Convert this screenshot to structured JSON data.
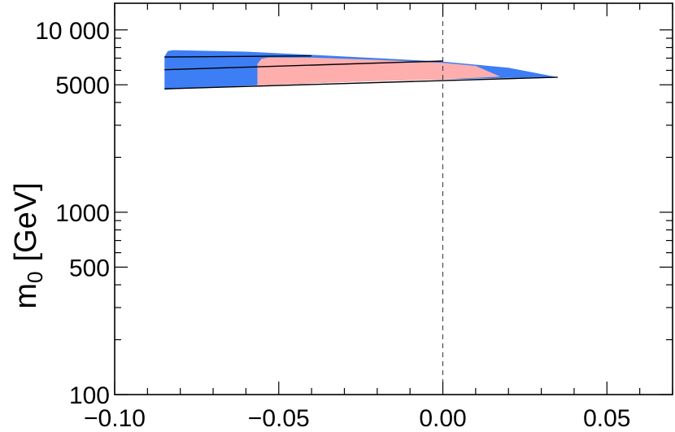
{
  "chart_data": {
    "type": "area",
    "title": "",
    "xlabel": "",
    "ylabel": "m",
    "ylabel_subscript": "0",
    "ylabel_unit": "[GeV]",
    "xlim": [
      -0.1,
      0.07
    ],
    "ylim": [
      100,
      14000
    ],
    "yscale": "log",
    "grid": false,
    "x_ticks": [
      {
        "value": -0.1,
        "label": "−0.10"
      },
      {
        "value": -0.05,
        "label": "−0.05"
      },
      {
        "value": 0.0,
        "label": "0.00"
      },
      {
        "value": 0.05,
        "label": "0.05"
      }
    ],
    "y_ticks": [
      {
        "value": 100,
        "label": "100"
      },
      {
        "value": 500,
        "label": "500"
      },
      {
        "value": 1000,
        "label": "1000"
      },
      {
        "value": 5000,
        "label": "5000"
      },
      {
        "value": 10000,
        "label": "10 000"
      }
    ],
    "reference_line": {
      "x": 0.0,
      "style": "dashed"
    },
    "regions": [
      {
        "color": "#3d7ef5",
        "points": [
          [
            -0.0848,
            4700
          ],
          [
            -0.0848,
            7150
          ],
          [
            -0.0838,
            7650
          ],
          [
            -0.0822,
            7750
          ],
          [
            -0.06,
            7600
          ],
          [
            -0.04,
            7300
          ],
          [
            -0.02,
            7000
          ],
          [
            0.0,
            6700
          ],
          [
            0.02,
            6200
          ],
          [
            0.035,
            5500
          ],
          [
            0.02,
            5450
          ],
          [
            0.0,
            5350
          ],
          [
            -0.02,
            5250
          ],
          [
            -0.04,
            5100
          ],
          [
            -0.06,
            4950
          ],
          [
            -0.08,
            4750
          ]
        ]
      },
      {
        "color": "#ffaeae",
        "points": [
          [
            -0.0565,
            4960
          ],
          [
            -0.0565,
            6500
          ],
          [
            -0.0553,
            6950
          ],
          [
            -0.053,
            7050
          ],
          [
            -0.04,
            7050
          ],
          [
            -0.02,
            6850
          ],
          [
            0.0,
            6600
          ],
          [
            0.01,
            6350
          ],
          [
            0.0175,
            5550
          ],
          [
            0.0,
            5350
          ],
          [
            -0.02,
            5250
          ],
          [
            -0.04,
            5100
          ]
        ]
      }
    ],
    "lines": [
      {
        "points": [
          [
            -0.0848,
            7100
          ],
          [
            -0.04,
            7200
          ]
        ]
      },
      {
        "points": [
          [
            -0.0848,
            6050
          ],
          [
            0.0,
            6750
          ]
        ]
      },
      {
        "points": [
          [
            -0.0848,
            4750
          ],
          [
            0.035,
            5500
          ]
        ]
      }
    ]
  }
}
